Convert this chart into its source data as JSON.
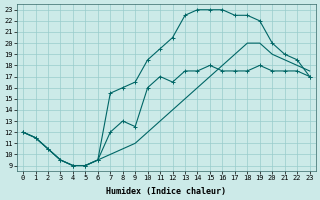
{
  "xlabel": "Humidex (Indice chaleur)",
  "bg_color": "#cceae8",
  "grid_color": "#99cccc",
  "line_color": "#006666",
  "xlim": [
    -0.5,
    23.5
  ],
  "ylim": [
    8.5,
    23.5
  ],
  "xticks": [
    0,
    1,
    2,
    3,
    4,
    5,
    6,
    7,
    8,
    9,
    10,
    11,
    12,
    13,
    14,
    15,
    16,
    17,
    18,
    19,
    20,
    21,
    22,
    23
  ],
  "yticks": [
    9,
    10,
    11,
    12,
    13,
    14,
    15,
    16,
    17,
    18,
    19,
    20,
    21,
    22,
    23
  ],
  "line1_x": [
    0,
    1,
    2,
    3,
    4,
    5,
    6,
    7,
    8,
    9,
    10,
    11,
    12,
    13,
    14,
    15,
    16,
    17,
    18,
    19,
    20,
    21,
    22,
    23
  ],
  "line1_y": [
    12,
    11.5,
    10.5,
    9.5,
    9,
    9,
    9.5,
    10,
    10.5,
    11,
    12,
    13,
    14,
    15,
    16,
    17,
    18,
    19,
    20,
    20,
    19,
    18.5,
    18,
    17.5
  ],
  "line2_x": [
    0,
    1,
    2,
    3,
    4,
    5,
    6,
    7,
    8,
    9,
    10,
    11,
    12,
    13,
    14,
    15,
    16,
    17,
    18,
    19,
    20,
    21,
    22,
    23
  ],
  "line2_y": [
    12,
    11.5,
    10.5,
    9.5,
    9,
    9,
    9.5,
    15.5,
    16,
    16.5,
    18.5,
    19.5,
    20.5,
    22.5,
    23,
    23,
    23,
    22.5,
    22.5,
    22,
    20,
    19,
    18.5,
    17
  ],
  "line2_markers": [
    0,
    1,
    2,
    3,
    4,
    5,
    6,
    7,
    8,
    9,
    10,
    11,
    12,
    13,
    14,
    15,
    16,
    17,
    18,
    19,
    20,
    21,
    22,
    23
  ],
  "line3_x": [
    0,
    1,
    2,
    3,
    4,
    5,
    6,
    7,
    8,
    9,
    10,
    11,
    12,
    13,
    14,
    15,
    16,
    17,
    18,
    19,
    20,
    21,
    22,
    23
  ],
  "line3_y": [
    12,
    11.5,
    10.5,
    9.5,
    9,
    9,
    9.5,
    12,
    13,
    12.5,
    16,
    17,
    16.5,
    17.5,
    17.5,
    18,
    17.5,
    17.5,
    17.5,
    18,
    17.5,
    17.5,
    17.5,
    17
  ],
  "line3_markers": [
    0,
    1,
    2,
    3,
    4,
    5,
    6,
    7,
    8,
    9,
    10,
    11,
    12,
    13,
    14,
    15,
    16,
    17,
    18,
    19,
    20,
    21,
    22,
    23
  ],
  "xlabel_fontsize": 6,
  "tick_fontsize": 5
}
